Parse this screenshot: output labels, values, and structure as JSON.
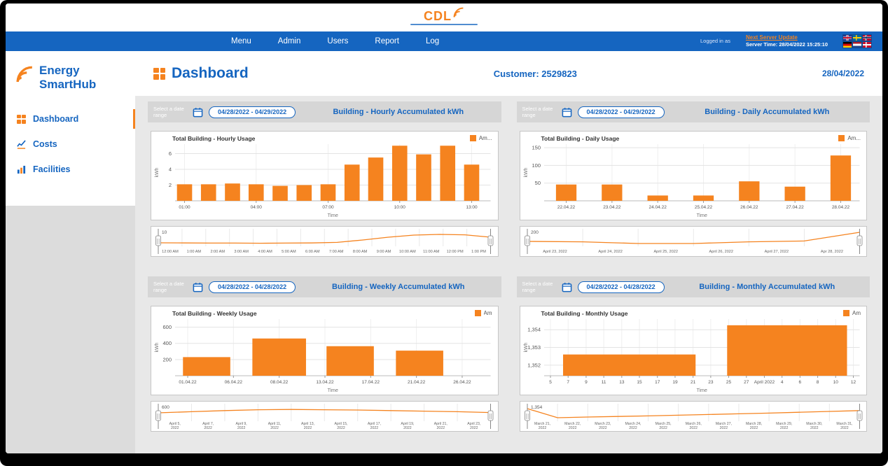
{
  "colors": {
    "blue": "#1565C0",
    "orange": "#F5831F"
  },
  "logo": {
    "text": "CDL"
  },
  "navbar": {
    "items": [
      "Menu",
      "Admin",
      "Users",
      "Report",
      "Log"
    ],
    "logged_in_label": "Logged in as",
    "next_update_label": "Next Server Update",
    "server_time": "Server Time: 28/04/2022 15:25:10",
    "flags": [
      "uk",
      "sweden",
      "norway",
      "germany",
      "netherlands",
      "denmark"
    ]
  },
  "sidebar": {
    "brand": "Energy SmartHub",
    "items": [
      {
        "label": "Dashboard",
        "active": true
      },
      {
        "label": "Costs",
        "active": false
      },
      {
        "label": "Facilities",
        "active": false
      }
    ]
  },
  "main": {
    "title": "Dashboard",
    "customer": "Customer: 2529823",
    "date": "28/04/2022"
  },
  "panels": [
    {
      "select_label": "Select a date range",
      "date_range": "04/28/2022 - 04/29/2022",
      "title": "Building - Hourly Accumulated kWh",
      "chart_title": "Total Building - Hourly Usage",
      "legend": "Am..."
    },
    {
      "select_label": "Select a date range",
      "date_range": "04/28/2022 - 04/29/2022",
      "title": "Building - Daily Accumulated kWh",
      "chart_title": "Total Building - Daily Usage",
      "legend": "Am..."
    },
    {
      "select_label": "Select a date range",
      "date_range": "04/28/2022 - 04/28/2022",
      "title": "Building - Weekly Accumulated kWh",
      "chart_title": "Total Building - Weekly Usage",
      "legend": "Am"
    },
    {
      "select_label": "Select a date range",
      "date_range": "04/28/2022 - 04/28/2022",
      "title": "Building - Monthly Accumulated kWh",
      "chart_title": "Total Building - Monthly Usage",
      "legend": "Am"
    }
  ],
  "chart_data": [
    {
      "type": "bar",
      "title": "Total Building - Hourly Usage",
      "xlabel": "Time",
      "ylabel": "kWh",
      "ymin": 0,
      "ymax": 7.2,
      "yticks": [
        {
          "v": 2,
          "label": "2"
        },
        {
          "v": 4,
          "label": "4"
        },
        {
          "v": 6,
          "label": "6"
        }
      ],
      "xticks": [
        {
          "pos": 0.03,
          "label": "01:00"
        },
        {
          "pos": 0.257,
          "label": "04:00"
        },
        {
          "pos": 0.485,
          "label": "07:00"
        },
        {
          "pos": 0.712,
          "label": "10:00"
        },
        {
          "pos": 0.94,
          "label": "13:00"
        }
      ],
      "bars": [
        {
          "x": "01:00",
          "v": 2.1,
          "pos": 0.03,
          "w": 0.048
        },
        {
          "x": "02:00",
          "v": 2.1,
          "pos": 0.106,
          "w": 0.048
        },
        {
          "x": "03:00",
          "v": 2.2,
          "pos": 0.182,
          "w": 0.048
        },
        {
          "x": "04:00",
          "v": 2.1,
          "pos": 0.257,
          "w": 0.048
        },
        {
          "x": "05:00",
          "v": 1.9,
          "pos": 0.333,
          "w": 0.048
        },
        {
          "x": "06:00",
          "v": 2.0,
          "pos": 0.409,
          "w": 0.048
        },
        {
          "x": "07:00",
          "v": 2.1,
          "pos": 0.485,
          "w": 0.048
        },
        {
          "x": "08:00",
          "v": 4.6,
          "pos": 0.561,
          "w": 0.048
        },
        {
          "x": "09:00",
          "v": 5.5,
          "pos": 0.636,
          "w": 0.048
        },
        {
          "x": "10:00",
          "v": 7.0,
          "pos": 0.712,
          "w": 0.048
        },
        {
          "x": "11:00",
          "v": 5.9,
          "pos": 0.788,
          "w": 0.048
        },
        {
          "x": "12:00",
          "v": 7.0,
          "pos": 0.864,
          "w": 0.048
        },
        {
          "x": "13:00",
          "v": 4.6,
          "pos": 0.94,
          "w": 0.048
        }
      ],
      "legend": "Am...",
      "navigator": {
        "corner_label": "10",
        "two_line": false,
        "labels": [
          "12:00 AM",
          "1:00 AM",
          "2:00 AM",
          "3:00 AM",
          "4:00 AM",
          "5:00 AM",
          "6:00 AM",
          "7:00 AM",
          "8:00 AM",
          "9:00 AM",
          "10:00 AM",
          "11:00 AM",
          "12:00 PM",
          "1:00 PM"
        ],
        "line": [
          0.15,
          0.14,
          0.13,
          0.13,
          0.12,
          0.13,
          0.14,
          0.18,
          0.35,
          0.55,
          0.7,
          0.75,
          0.72,
          0.55
        ]
      }
    },
    {
      "type": "bar",
      "title": "Total Building - Daily Usage",
      "xlabel": "Time",
      "ylabel": "kWh",
      "ymin": 0,
      "ymax": 160,
      "yticks": [
        {
          "v": 50,
          "label": "50"
        },
        {
          "v": 100,
          "label": "100"
        },
        {
          "v": 150,
          "label": "150"
        }
      ],
      "xticks": [
        {
          "pos": 0.07,
          "label": "22.04.22"
        },
        {
          "pos": 0.215,
          "label": "23.04.22"
        },
        {
          "pos": 0.36,
          "label": "24.04.22"
        },
        {
          "pos": 0.505,
          "label": "25.04.22"
        },
        {
          "pos": 0.65,
          "label": "26.04.22"
        },
        {
          "pos": 0.795,
          "label": "27.04.22"
        },
        {
          "pos": 0.94,
          "label": "28.04.22"
        }
      ],
      "bars": [
        {
          "x": "22.04.22",
          "v": 46,
          "pos": 0.07,
          "w": 0.065
        },
        {
          "x": "23.04.22",
          "v": 46,
          "pos": 0.215,
          "w": 0.065
        },
        {
          "x": "24.04.22",
          "v": 15,
          "pos": 0.36,
          "w": 0.065
        },
        {
          "x": "25.04.22",
          "v": 15,
          "pos": 0.505,
          "w": 0.065
        },
        {
          "x": "26.04.22",
          "v": 55,
          "pos": 0.65,
          "w": 0.065
        },
        {
          "x": "27.04.22",
          "v": 40,
          "pos": 0.795,
          "w": 0.065
        },
        {
          "x": "28.04.22",
          "v": 128,
          "pos": 0.94,
          "w": 0.065
        }
      ],
      "legend": "Am...",
      "navigator": {
        "corner_label": "200",
        "two_line": false,
        "labels": [
          "April 23, 2022",
          "April 24, 2022",
          "April 25, 2022",
          "April 26, 2022",
          "April 27, 2022",
          "Apr 28, 2022"
        ],
        "line": [
          0.25,
          0.22,
          0.1,
          0.1,
          0.22,
          0.28,
          0.9
        ]
      }
    },
    {
      "type": "bar",
      "title": "Total Building - Weekly Usage",
      "xlabel": "Time",
      "ylabel": "kWh",
      "ymin": 0,
      "ymax": 700,
      "yticks": [
        {
          "v": 200,
          "label": "200"
        },
        {
          "v": 400,
          "label": "400"
        },
        {
          "v": 600,
          "label": "600"
        }
      ],
      "xticks": [
        {
          "pos": 0.04,
          "label": "01.04.22"
        },
        {
          "pos": 0.185,
          "label": "06.04.22"
        },
        {
          "pos": 0.33,
          "label": "08.04.22"
        },
        {
          "pos": 0.475,
          "label": "13.04.22"
        },
        {
          "pos": 0.62,
          "label": "17.04.22"
        },
        {
          "pos": 0.765,
          "label": "21.04.22"
        },
        {
          "pos": 0.91,
          "label": "26.04.22"
        }
      ],
      "bars": [
        {
          "v": 230,
          "pos": 0.1,
          "w": 0.15
        },
        {
          "v": 460,
          "pos": 0.33,
          "w": 0.17
        },
        {
          "v": 365,
          "pos": 0.555,
          "w": 0.15
        },
        {
          "v": 310,
          "pos": 0.775,
          "w": 0.15
        }
      ],
      "legend": "Am",
      "navigator": {
        "corner_label": "600",
        "two_line": true,
        "labels": [
          "April 5, 2022",
          "April 7, 2022",
          "April 9, 2022",
          "April 11, 2022",
          "April 13, 2022",
          "April 15, 2022",
          "April 17, 2022",
          "April 19, 2022",
          "April 21, 2022",
          "April 23, 2022"
        ],
        "line": [
          0.5,
          0.58,
          0.66,
          0.72,
          0.74,
          0.72,
          0.7,
          0.66,
          0.62,
          0.58,
          0.52
        ]
      }
    },
    {
      "type": "bar",
      "title": "Total Building - Monthly Usage",
      "xlabel": "Time",
      "ylabel": "kWh",
      "ymin": 1351.4,
      "ymax": 1354.6,
      "yticks": [
        {
          "v": 1352,
          "label": "1,352"
        },
        {
          "v": 1353,
          "label": "1,353"
        },
        {
          "v": 1354,
          "label": "1,354"
        }
      ],
      "xticks": [
        {
          "pos": 0.02,
          "label": "5"
        },
        {
          "pos": 0.076,
          "label": "7"
        },
        {
          "pos": 0.133,
          "label": "9"
        },
        {
          "pos": 0.189,
          "label": "11"
        },
        {
          "pos": 0.246,
          "label": "13"
        },
        {
          "pos": 0.302,
          "label": "15"
        },
        {
          "pos": 0.359,
          "label": "17"
        },
        {
          "pos": 0.415,
          "label": "19"
        },
        {
          "pos": 0.472,
          "label": "21"
        },
        {
          "pos": 0.528,
          "label": "23"
        },
        {
          "pos": 0.585,
          "label": "25"
        },
        {
          "pos": 0.641,
          "label": "27"
        },
        {
          "pos": 0.698,
          "label": "April 2022"
        },
        {
          "pos": 0.754,
          "label": "4"
        },
        {
          "pos": 0.811,
          "label": "6"
        },
        {
          "pos": 0.867,
          "label": "8"
        },
        {
          "pos": 0.924,
          "label": "10"
        },
        {
          "pos": 0.98,
          "label": "12"
        }
      ],
      "bars": [
        {
          "v": 1352.6,
          "pos": 0.27,
          "w": 0.42
        },
        {
          "v": 1354.25,
          "pos": 0.77,
          "w": 0.38
        }
      ],
      "legend": "Am",
      "navigator": {
        "corner_label": "1,354",
        "two_line": true,
        "labels": [
          "March 21, 2022",
          "March 22, 2022",
          "March 23, 2022",
          "March 24, 2022",
          "March 25, 2022",
          "March 26, 2022",
          "March 27, 2022",
          "March 28, 2022",
          "March 29, 2022",
          "March 30, 2022",
          "March 31, 2022"
        ],
        "line": [
          0.8,
          0.15,
          0.2,
          0.24,
          0.28,
          0.33,
          0.38,
          0.43,
          0.48,
          0.54,
          0.6,
          0.66
        ]
      }
    }
  ]
}
